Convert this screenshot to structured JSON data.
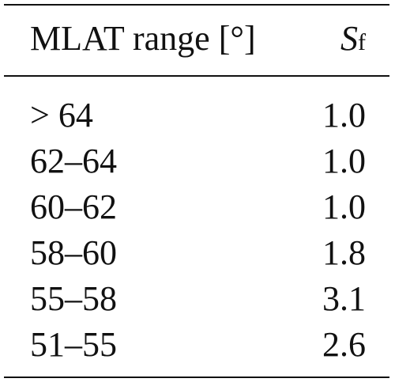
{
  "table": {
    "header": {
      "col1": "MLAT range [°]",
      "col2_symbol": "S",
      "col2_subscript": "f"
    },
    "rows": [
      {
        "range": "> 64",
        "sf": "1.0"
      },
      {
        "range": "62–64",
        "sf": "1.0"
      },
      {
        "range": "60–62",
        "sf": "1.0"
      },
      {
        "range": "58–60",
        "sf": "1.8"
      },
      {
        "range": "55–58",
        "sf": "3.1"
      },
      {
        "range": "51–55",
        "sf": "2.6"
      }
    ]
  }
}
